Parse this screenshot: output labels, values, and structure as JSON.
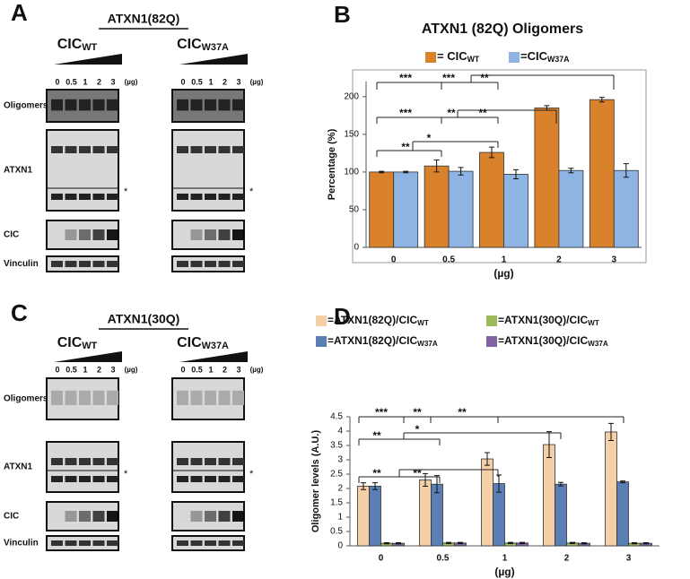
{
  "chart_data": [
    {
      "type": "bar",
      "panel_label": "B",
      "title": "ATXN1 (82Q) Oligomers",
      "y_label": "Percentage (%)",
      "x_label": "(µg)",
      "categories": [
        "0",
        "0.5",
        "1",
        "2",
        "3"
      ],
      "series": [
        {
          "name": "= CIC",
          "name_sub": "WT",
          "color": "#d9822b",
          "values": [
            100,
            108,
            126,
            185,
            196
          ],
          "errors": [
            1,
            8,
            7,
            3,
            3
          ]
        },
        {
          "name": "=CIC",
          "name_sub": "W37A",
          "color": "#8db4e2",
          "values": [
            100,
            101,
            97,
            102,
            102
          ],
          "errors": [
            1,
            5,
            6,
            3,
            9
          ]
        }
      ],
      "ylim": [
        0,
        220
      ],
      "yticks": [
        0,
        50,
        100,
        150,
        200
      ],
      "annotations": [
        "***",
        "***",
        "**",
        "***",
        "**",
        "**",
        "**",
        "*"
      ]
    },
    {
      "type": "bar",
      "panel_label": "D",
      "y_label": "Oligomer levels (A.U.)",
      "x_label": "(µg)",
      "categories": [
        "0",
        "0.5",
        "1",
        "2",
        "3"
      ],
      "series": [
        {
          "name": "=ATXN1(82Q)/CIC",
          "name_sub": "WT",
          "color": "#f5cfa8",
          "values": [
            2.08,
            2.3,
            3.03,
            3.53,
            3.97
          ],
          "errors": [
            0.12,
            0.22,
            0.22,
            0.45,
            0.3
          ]
        },
        {
          "name": "=ATXN1(82Q)/CIC",
          "name_sub": "W37A",
          "color": "#5b7fb5",
          "values": [
            2.08,
            2.15,
            2.17,
            2.15,
            2.23
          ],
          "errors": [
            0.12,
            0.3,
            0.3,
            0.06,
            0.03
          ]
        },
        {
          "name": "=ATXN1(30Q)/CIC",
          "name_sub": "WT",
          "color": "#9bbb59",
          "values": [
            0.09,
            0.1,
            0.1,
            0.1,
            0.09
          ],
          "errors": [
            0.02,
            0.02,
            0.02,
            0.02,
            0.02
          ]
        },
        {
          "name": "=ATXN1(30Q)/CIC",
          "name_sub": "W37A",
          "color": "#8064a2",
          "values": [
            0.09,
            0.1,
            0.1,
            0.09,
            0.09
          ],
          "errors": [
            0.02,
            0.02,
            0.02,
            0.02,
            0.02
          ]
        }
      ],
      "ylim": [
        0,
        4.5
      ],
      "yticks": [
        0,
        0.5,
        1,
        1.5,
        2,
        2.5,
        3,
        3.5,
        4,
        4.5
      ],
      "annotations": [
        "***",
        "**",
        "**",
        "**",
        "*",
        "**",
        "**"
      ]
    }
  ],
  "blots": [
    {
      "panel_label": "A",
      "title": "ATXN1(82Q)",
      "groups": [
        {
          "name": "CIC",
          "sub": "WT"
        },
        {
          "name": "CIC",
          "sub": "W37A"
        }
      ],
      "doses": [
        "0",
        "0.5",
        "1",
        "2",
        "3"
      ],
      "unit": "(µg)",
      "rows": [
        "Oligomers",
        "ATXN1",
        "CIC",
        "Vinculin"
      ],
      "marker": "*"
    },
    {
      "panel_label": "C",
      "title": "ATXN1(30Q)",
      "groups": [
        {
          "name": "CIC",
          "sub": "WT"
        },
        {
          "name": "CIC",
          "sub": "W37A"
        }
      ],
      "doses": [
        "0",
        "0.5",
        "1",
        "2",
        "3"
      ],
      "unit": "(µg)",
      "rows": [
        "Oligomers",
        "ATXN1",
        "CIC",
        "Vinculin"
      ],
      "marker": "*"
    }
  ]
}
